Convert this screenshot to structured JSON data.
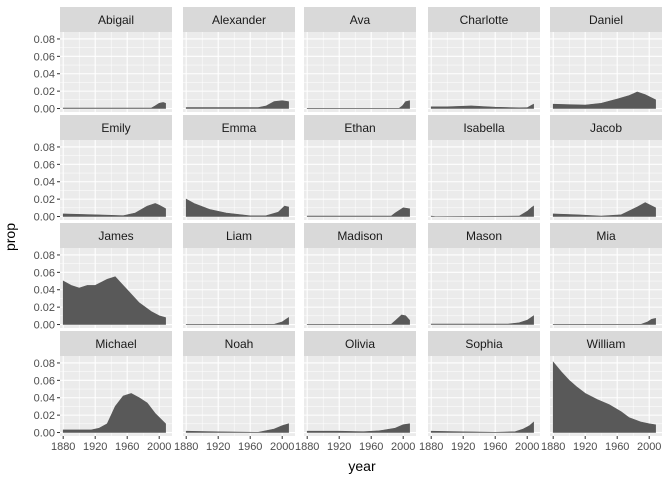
{
  "colors": {
    "panel_background": "#ebebeb",
    "strip_background": "#d9d9d9",
    "grid_major": "#ffffff",
    "area_fill": "#595959",
    "tick_text": "#4d4d4d"
  },
  "chart_data": {
    "type": "area",
    "facet_layout": {
      "rows": 4,
      "cols": 5
    },
    "xlabel": "year",
    "ylabel": "prop",
    "xlim": [
      1876,
      2016
    ],
    "ylim": [
      -0.004,
      0.088
    ],
    "x_ticks": [
      1880,
      1920,
      1960,
      2000
    ],
    "x_tick_labels": [
      "1880",
      "1920",
      "1960",
      "2000"
    ],
    "y_ticks": [
      0,
      0.02,
      0.04,
      0.06,
      0.08
    ],
    "y_tick_labels": [
      "0.00",
      "0.02",
      "0.04",
      "0.06",
      "0.08"
    ],
    "grid": true,
    "facets": [
      {
        "name": "Abigail",
        "points": [
          [
            1880,
            0.0005
          ],
          [
            1990,
            0.0005
          ],
          [
            1995,
            0.003
          ],
          [
            2000,
            0.006
          ],
          [
            2005,
            0.007
          ],
          [
            2008,
            0.006
          ]
        ]
      },
      {
        "name": "Alexander",
        "points": [
          [
            1880,
            0.0012
          ],
          [
            1970,
            0.0012
          ],
          [
            1980,
            0.003
          ],
          [
            1990,
            0.008
          ],
          [
            2000,
            0.009
          ],
          [
            2008,
            0.008
          ]
        ]
      },
      {
        "name": "Ava",
        "points": [
          [
            1880,
            0.0003
          ],
          [
            1995,
            0.0003
          ],
          [
            1999,
            0.003
          ],
          [
            2003,
            0.008
          ],
          [
            2008,
            0.009
          ]
        ]
      },
      {
        "name": "Charlotte",
        "points": [
          [
            1880,
            0.002
          ],
          [
            1900,
            0.002
          ],
          [
            1930,
            0.003
          ],
          [
            1960,
            0.0015
          ],
          [
            1990,
            0.0008
          ],
          [
            2000,
            0.001
          ],
          [
            2006,
            0.004
          ],
          [
            2008,
            0.005
          ]
        ]
      },
      {
        "name": "Daniel",
        "points": [
          [
            1880,
            0.005
          ],
          [
            1920,
            0.004
          ],
          [
            1940,
            0.006
          ],
          [
            1960,
            0.011
          ],
          [
            1975,
            0.015
          ],
          [
            1985,
            0.019
          ],
          [
            1995,
            0.016
          ],
          [
            2008,
            0.01
          ]
        ]
      },
      {
        "name": "Emily",
        "points": [
          [
            1880,
            0.003
          ],
          [
            1920,
            0.002
          ],
          [
            1955,
            0.001
          ],
          [
            1970,
            0.004
          ],
          [
            1985,
            0.012
          ],
          [
            1995,
            0.015
          ],
          [
            2000,
            0.013
          ],
          [
            2008,
            0.009
          ]
        ]
      },
      {
        "name": "Emma",
        "points": [
          [
            1880,
            0.02
          ],
          [
            1890,
            0.015
          ],
          [
            1910,
            0.008
          ],
          [
            1930,
            0.004
          ],
          [
            1960,
            0.0008
          ],
          [
            1980,
            0.001
          ],
          [
            1995,
            0.005
          ],
          [
            2003,
            0.012
          ],
          [
            2008,
            0.011
          ]
        ]
      },
      {
        "name": "Ethan",
        "points": [
          [
            1880,
            0.0005
          ],
          [
            1985,
            0.0005
          ],
          [
            1990,
            0.004
          ],
          [
            2000,
            0.01
          ],
          [
            2008,
            0.009
          ]
        ]
      },
      {
        "name": "Isabella",
        "points": [
          [
            1880,
            0.0005
          ],
          [
            1885,
            0
          ],
          [
            1990,
            0.0005
          ],
          [
            2000,
            0.006
          ],
          [
            2005,
            0.01
          ],
          [
            2008,
            0.012
          ]
        ]
      },
      {
        "name": "Jacob",
        "points": [
          [
            1880,
            0.003
          ],
          [
            1910,
            0.002
          ],
          [
            1940,
            0.0005
          ],
          [
            1965,
            0.002
          ],
          [
            1985,
            0.011
          ],
          [
            1995,
            0.016
          ],
          [
            2008,
            0.01
          ]
        ]
      },
      {
        "name": "James",
        "points": [
          [
            1880,
            0.05
          ],
          [
            1890,
            0.045
          ],
          [
            1900,
            0.042
          ],
          [
            1910,
            0.045
          ],
          [
            1920,
            0.045
          ],
          [
            1935,
            0.052
          ],
          [
            1945,
            0.055
          ],
          [
            1955,
            0.045
          ],
          [
            1965,
            0.035
          ],
          [
            1975,
            0.025
          ],
          [
            1990,
            0.015
          ],
          [
            2000,
            0.01
          ],
          [
            2008,
            0.008
          ]
        ]
      },
      {
        "name": "Liam",
        "points": [
          [
            1880,
            0.0003
          ],
          [
            1990,
            0.0003
          ],
          [
            2000,
            0.003
          ],
          [
            2008,
            0.008
          ]
        ]
      },
      {
        "name": "Madison",
        "points": [
          [
            1880,
            0.0003
          ],
          [
            1985,
            0.0003
          ],
          [
            1992,
            0.006
          ],
          [
            1998,
            0.011
          ],
          [
            2003,
            0.01
          ],
          [
            2008,
            0.005
          ]
        ]
      },
      {
        "name": "Mason",
        "points": [
          [
            1880,
            0.0005
          ],
          [
            1975,
            0.0005
          ],
          [
            1990,
            0.002
          ],
          [
            2000,
            0.005
          ],
          [
            2008,
            0.01
          ]
        ]
      },
      {
        "name": "Mia",
        "points": [
          [
            1880,
            0.0003
          ],
          [
            1990,
            0.0003
          ],
          [
            1998,
            0.003
          ],
          [
            2003,
            0.006
          ],
          [
            2008,
            0.007
          ]
        ]
      },
      {
        "name": "Michael",
        "points": [
          [
            1880,
            0.003
          ],
          [
            1915,
            0.003
          ],
          [
            1925,
            0.005
          ],
          [
            1935,
            0.01
          ],
          [
            1945,
            0.03
          ],
          [
            1955,
            0.042
          ],
          [
            1965,
            0.045
          ],
          [
            1975,
            0.04
          ],
          [
            1985,
            0.034
          ],
          [
            1995,
            0.022
          ],
          [
            2008,
            0.01
          ]
        ]
      },
      {
        "name": "Noah",
        "points": [
          [
            1880,
            0.0015
          ],
          [
            1920,
            0.0008
          ],
          [
            1970,
            0.0003
          ],
          [
            1990,
            0.004
          ],
          [
            2000,
            0.008
          ],
          [
            2008,
            0.01
          ]
        ]
      },
      {
        "name": "Olivia",
        "points": [
          [
            1880,
            0.0015
          ],
          [
            1920,
            0.0015
          ],
          [
            1950,
            0.001
          ],
          [
            1970,
            0.002
          ],
          [
            1990,
            0.005
          ],
          [
            2000,
            0.009
          ],
          [
            2008,
            0.01
          ]
        ]
      },
      {
        "name": "Sophia",
        "points": [
          [
            1880,
            0.0015
          ],
          [
            1920,
            0.0008
          ],
          [
            1960,
            0.0003
          ],
          [
            1985,
            0.001
          ],
          [
            1995,
            0.004
          ],
          [
            2003,
            0.008
          ],
          [
            2008,
            0.012
          ]
        ]
      },
      {
        "name": "William",
        "points": [
          [
            1880,
            0.081
          ],
          [
            1890,
            0.07
          ],
          [
            1900,
            0.06
          ],
          [
            1910,
            0.052
          ],
          [
            1920,
            0.045
          ],
          [
            1935,
            0.038
          ],
          [
            1950,
            0.032
          ],
          [
            1965,
            0.024
          ],
          [
            1975,
            0.017
          ],
          [
            1990,
            0.012
          ],
          [
            2000,
            0.01
          ],
          [
            2008,
            0.009
          ]
        ]
      }
    ]
  }
}
